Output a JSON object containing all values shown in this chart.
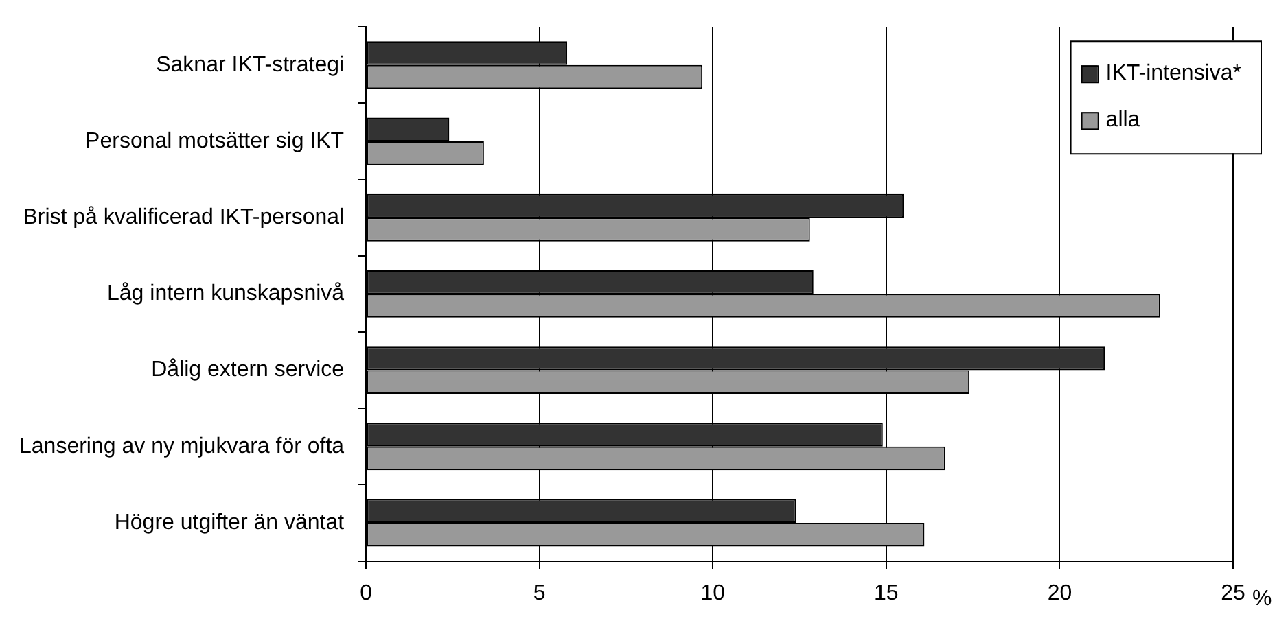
{
  "chart_data": {
    "type": "bar",
    "orientation": "horizontal",
    "xlabel": "%",
    "categories": [
      "Saknar IKT-strategi",
      "Personal motsätter sig IKT",
      "Brist på kvalificerad IKT-personal",
      "Låg intern kunskapsnivå",
      "Dålig extern service",
      "Lansering av ny mjukvara för ofta",
      "Högre utgifter än väntat"
    ],
    "series": [
      {
        "name": "IKT-intensiva*",
        "color": "#333333",
        "values": [
          5.8,
          2.4,
          15.5,
          12.9,
          21.3,
          14.9,
          12.4
        ]
      },
      {
        "name": "alla",
        "color": "#999999",
        "values": [
          9.7,
          3.4,
          12.8,
          22.9,
          17.4,
          16.7,
          16.1
        ]
      }
    ],
    "xlim": [
      0,
      25
    ],
    "xticks": [
      0,
      5,
      10,
      15,
      20,
      25
    ],
    "grid": "x",
    "legend": "top right"
  }
}
